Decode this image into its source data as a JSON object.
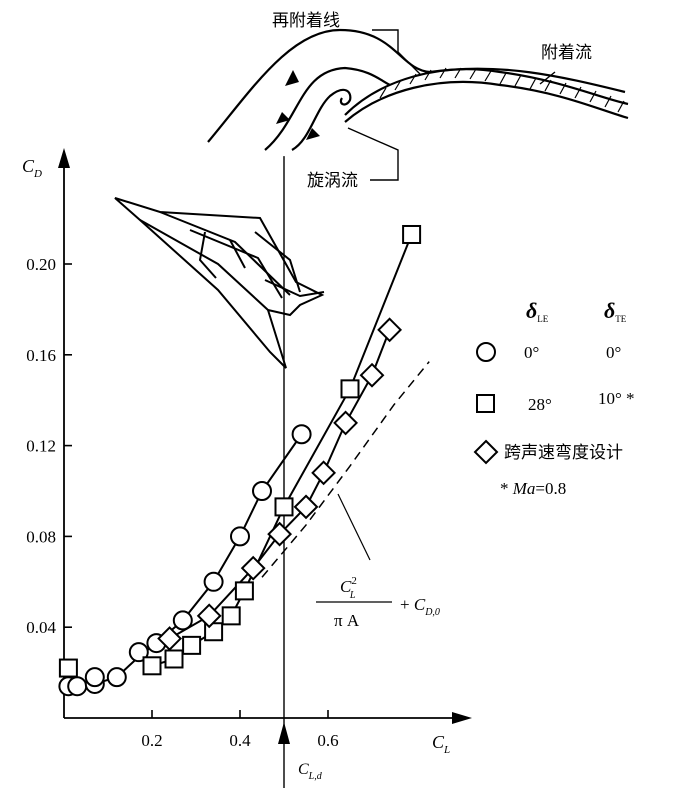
{
  "chart_data": {
    "type": "scatter",
    "title": "",
    "xlabel": "C_L",
    "ylabel": "C_D",
    "xlabel_main": "C",
    "xlabel_sub": "L",
    "ylabel_main": "C",
    "ylabel_sub": "D",
    "xlim": [
      0,
      0.9
    ],
    "ylim": [
      0,
      0.25
    ],
    "x_ticks": [
      0.2,
      0.4,
      0.6
    ],
    "x_tick_labels": [
      "0.2",
      "0.4",
      "0.6"
    ],
    "y_ticks": [
      0.04,
      0.08,
      0.12,
      0.16,
      0.2
    ],
    "y_tick_labels": [
      "0.04",
      "0.08",
      "0.12",
      "0.16",
      "0.20"
    ],
    "grid": false,
    "legend_position": "right",
    "legend_header": {
      "col1_main": "δ",
      "col1_sub": "LE",
      "col2_main": "δ",
      "col2_sub": "TE"
    },
    "series": [
      {
        "marker": "circle",
        "legend_values": [
          "0°",
          "0°"
        ],
        "points": [
          [
            0.01,
            0.014
          ],
          [
            0.03,
            0.014
          ],
          [
            0.07,
            0.015
          ],
          [
            0.07,
            0.018
          ],
          [
            0.12,
            0.018
          ],
          [
            0.17,
            0.029
          ],
          [
            0.21,
            0.033
          ],
          [
            0.27,
            0.043
          ],
          [
            0.34,
            0.06
          ],
          [
            0.4,
            0.08
          ],
          [
            0.45,
            0.1
          ],
          [
            0.54,
            0.125
          ]
        ],
        "line": [
          [
            0.01,
            0.014
          ],
          [
            0.07,
            0.015
          ],
          [
            0.12,
            0.018
          ],
          [
            0.17,
            0.027
          ],
          [
            0.21,
            0.033
          ],
          [
            0.27,
            0.043
          ],
          [
            0.34,
            0.06
          ],
          [
            0.4,
            0.08
          ],
          [
            0.45,
            0.1
          ],
          [
            0.54,
            0.125
          ]
        ]
      },
      {
        "marker": "square",
        "legend_values": [
          "28°",
          "10° *"
        ],
        "points": [
          [
            0.01,
            0.022
          ],
          [
            0.2,
            0.023
          ],
          [
            0.25,
            0.026
          ],
          [
            0.29,
            0.032
          ],
          [
            0.34,
            0.038
          ],
          [
            0.38,
            0.045
          ],
          [
            0.41,
            0.056
          ],
          [
            0.5,
            0.093
          ],
          [
            0.65,
            0.145
          ],
          [
            0.79,
            0.213
          ]
        ],
        "line": [
          [
            0.2,
            0.023
          ],
          [
            0.25,
            0.026
          ],
          [
            0.29,
            0.032
          ],
          [
            0.34,
            0.038
          ],
          [
            0.38,
            0.045
          ],
          [
            0.41,
            0.056
          ],
          [
            0.5,
            0.093
          ],
          [
            0.65,
            0.145
          ],
          [
            0.79,
            0.213
          ]
        ]
      },
      {
        "marker": "diamond",
        "legend_label": "跨声速弯度设计",
        "legend_note_prefix": "* ",
        "legend_note_var": "Ma",
        "legend_note_value": "=0.8",
        "points": [
          [
            0.24,
            0.035
          ],
          [
            0.33,
            0.045
          ],
          [
            0.43,
            0.066
          ],
          [
            0.49,
            0.081
          ],
          [
            0.55,
            0.093
          ],
          [
            0.59,
            0.108
          ],
          [
            0.64,
            0.13
          ],
          [
            0.7,
            0.151
          ],
          [
            0.74,
            0.171
          ]
        ],
        "line": [
          [
            0.24,
            0.035
          ],
          [
            0.33,
            0.045
          ],
          [
            0.43,
            0.066
          ],
          [
            0.49,
            0.081
          ],
          [
            0.55,
            0.093
          ],
          [
            0.59,
            0.108
          ],
          [
            0.64,
            0.13
          ],
          [
            0.7,
            0.151
          ],
          [
            0.74,
            0.171
          ]
        ]
      }
    ],
    "reference_curve": {
      "style": "dashed",
      "points": [
        [
          0.45,
          0.062
        ],
        [
          0.55,
          0.085
        ],
        [
          0.65,
          0.111
        ],
        [
          0.75,
          0.138
        ],
        [
          0.83,
          0.157
        ]
      ],
      "formula_num_main": "C",
      "formula_num_sup": "2",
      "formula_num_sub": "L",
      "formula_den": "π A",
      "formula_plus": "+ ",
      "formula_term_main": "C",
      "formula_term_sub": "D,0"
    },
    "design_point": {
      "x": 0.5,
      "label_main": "C",
      "label_sub": "L,d"
    }
  },
  "diagram_labels": {
    "reattachment_line": "再附着线",
    "attached_flow": "附着流",
    "vortex_flow": "旋涡流"
  },
  "colors": {
    "ink": "#000000",
    "background": "#ffffff"
  }
}
